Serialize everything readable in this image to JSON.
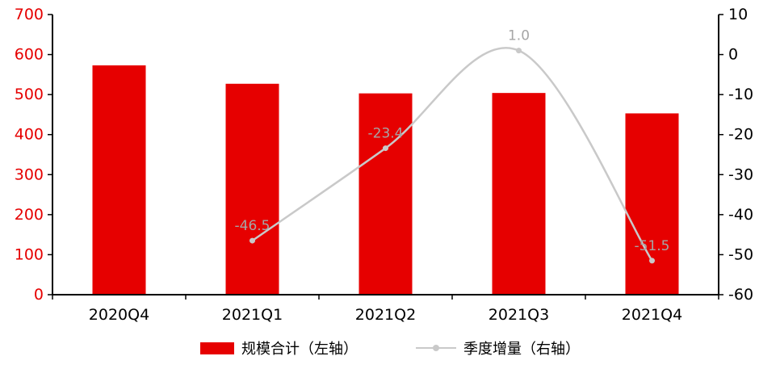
{
  "chart_data": {
    "type": "bar",
    "subtype": "bar-line-combo",
    "title": "",
    "categories": [
      "2020Q4",
      "2021Q1",
      "2021Q2",
      "2021Q3",
      "2021Q4"
    ],
    "series": [
      {
        "name": "规模合计（左轴）",
        "type": "bar",
        "axis": "left",
        "color": "#e60000",
        "values": [
          573,
          527,
          503,
          504,
          453
        ]
      },
      {
        "name": "季度增量（右轴）",
        "type": "line",
        "axis": "right",
        "color": "#c9c9c9",
        "label_color": "#a6a6a6",
        "values": [
          null,
          -46.5,
          -23.4,
          1.0,
          -51.5
        ],
        "point_labels": [
          "",
          "-46.5",
          "-23.4",
          "1.0",
          "-51.5"
        ]
      }
    ],
    "left_axis": {
      "min": 0,
      "max": 700,
      "step": 100,
      "ticks": [
        700,
        600,
        500,
        400,
        300,
        200,
        100,
        0
      ],
      "label_color": "#e60000"
    },
    "right_axis": {
      "min": -60,
      "max": 10,
      "step": 10,
      "ticks": [
        10,
        0,
        -10,
        -20,
        -30,
        -40,
        -50,
        -60
      ],
      "label_color": "#000000"
    },
    "axis_line_color": "#000000",
    "grid": false,
    "legend_position": "bottom",
    "background": "#ffffff"
  }
}
